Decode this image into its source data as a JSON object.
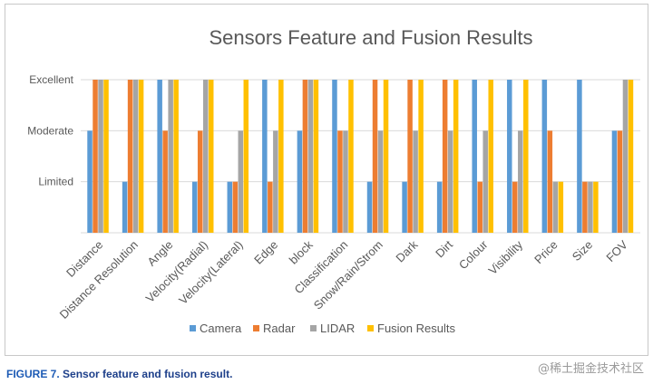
{
  "chart_data": {
    "type": "bar",
    "title": "Sensors Feature and Fusion Results",
    "categories": [
      "Distance",
      "Distance Resolution",
      "Angle",
      "Velocity(Radial)",
      "Velocity(Lateral)",
      "Edge",
      "block",
      "Classification",
      "Snow/Rain/Strom",
      "Dark",
      "Dirt",
      "Colour",
      "Visibility",
      "Price",
      "Size",
      "FOV"
    ],
    "y_levels": [
      {
        "label": "Excellent",
        "value": 3
      },
      {
        "label": "Moderate",
        "value": 2
      },
      {
        "label": "Limited",
        "value": 1
      }
    ],
    "ylim": [
      0,
      3
    ],
    "series": [
      {
        "name": "Camera",
        "color": "#5b9bd5",
        "values": [
          2,
          1,
          3,
          1,
          1,
          3,
          2,
          3,
          1,
          1,
          1,
          3,
          3,
          3,
          3,
          2
        ]
      },
      {
        "name": "Radar",
        "color": "#ed7d31",
        "values": [
          3,
          3,
          2,
          2,
          1,
          1,
          3,
          2,
          3,
          3,
          3,
          1,
          1,
          2,
          1,
          2
        ]
      },
      {
        "name": "LIDAR",
        "color": "#a5a5a5",
        "values": [
          3,
          3,
          3,
          3,
          2,
          2,
          3,
          2,
          2,
          2,
          2,
          2,
          2,
          1,
          1,
          3
        ]
      },
      {
        "name": "Fusion Results",
        "color": "#ffc000",
        "values": [
          3,
          3,
          3,
          3,
          3,
          3,
          3,
          3,
          3,
          3,
          3,
          3,
          3,
          1,
          1,
          3
        ]
      }
    ],
    "legend_position": "bottom",
    "grid": true
  },
  "caption": {
    "label": "FIGURE 7.",
    "text": "Sensor feature and fusion result."
  },
  "watermark": "@稀土掘金技术社区"
}
